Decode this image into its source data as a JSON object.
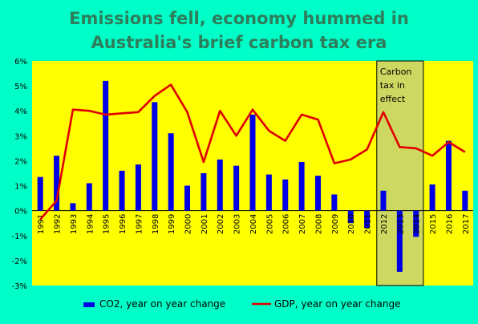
{
  "chart_data": {
    "type": "bar+line",
    "title_line1": "Emissions fell, economy hummed in",
    "title_line2": "Australia's brief carbon tax era",
    "categories": [
      "1991",
      "1992",
      "1993",
      "1994",
      "1995",
      "1996",
      "1997",
      "1998",
      "1999",
      "2000",
      "2001",
      "2002",
      "2003",
      "2004",
      "2005",
      "2006",
      "2007",
      "2008",
      "2009",
      "2010",
      "2011",
      "2012",
      "2013",
      "2014",
      "2015",
      "2016",
      "2017"
    ],
    "series": [
      {
        "name": "CO2, year on year change",
        "type": "bar",
        "color": "#0000e6",
        "values": [
          1.35,
          2.2,
          0.3,
          1.1,
          5.2,
          1.6,
          1.85,
          4.35,
          3.1,
          1.0,
          1.5,
          2.05,
          1.8,
          3.85,
          1.45,
          1.25,
          1.95,
          1.4,
          0.65,
          -0.5,
          -0.7,
          0.8,
          -2.45,
          -1.05,
          1.05,
          2.8,
          0.8
        ]
      },
      {
        "name": "GDP, year on year change",
        "type": "line",
        "color": "#e00000",
        "values": [
          -0.35,
          0.4,
          4.05,
          4.0,
          3.85,
          3.9,
          3.95,
          4.6,
          5.05,
          3.95,
          1.95,
          4.0,
          3.0,
          4.05,
          3.2,
          2.8,
          3.85,
          3.65,
          1.9,
          2.05,
          2.45,
          3.95,
          2.55,
          2.5,
          2.2,
          2.75,
          2.35
        ]
      }
    ],
    "ylim": [
      -3,
      6
    ],
    "yticks": [
      "-3%",
      "-2%",
      "-1%",
      "0%",
      "1%",
      "2%",
      "3%",
      "4%",
      "5%",
      "6%"
    ],
    "annotation": {
      "lines": [
        "Carbon",
        "tax in",
        "effect"
      ],
      "span": [
        "2012",
        "2014"
      ]
    },
    "colors": {
      "plot_bg": "#ffff00",
      "page_bg": "#00ffc8",
      "title": "#2e7d5b",
      "shade": "#c8d46a"
    },
    "legend_position": "bottom"
  }
}
